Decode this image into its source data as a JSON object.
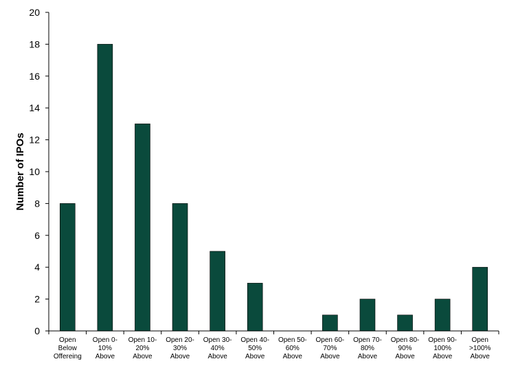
{
  "chart_data": {
    "type": "bar",
    "title": "",
    "xlabel": "",
    "ylabel": "Number of IPOs",
    "ylim": [
      0,
      20
    ],
    "yticks": [
      0,
      2,
      4,
      6,
      8,
      10,
      12,
      14,
      16,
      18,
      20
    ],
    "grid": false,
    "legend": "none",
    "bar_color": "#0a4a3c",
    "categories": [
      [
        "Open",
        "Below",
        "Offereing"
      ],
      [
        "Open 0-",
        "10%",
        "Above"
      ],
      [
        "Open 10-",
        "20%",
        "Above"
      ],
      [
        "Open 20-",
        "30%",
        "Above"
      ],
      [
        "Open 30-",
        "40%",
        "Above"
      ],
      [
        "Open 40-",
        "50%",
        "Above"
      ],
      [
        "Open 50-",
        "60%",
        "Above"
      ],
      [
        "Open 60-",
        "70%",
        "Above"
      ],
      [
        "Open 70-",
        "80%",
        "Above"
      ],
      [
        "Open 80-",
        "90%",
        "Above"
      ],
      [
        "Open 90-",
        "100%",
        "Above"
      ],
      [
        "Open",
        ">100%",
        "Above"
      ]
    ],
    "values": [
      8,
      18,
      13,
      8,
      5,
      3,
      0,
      1,
      2,
      1,
      2,
      4
    ]
  }
}
